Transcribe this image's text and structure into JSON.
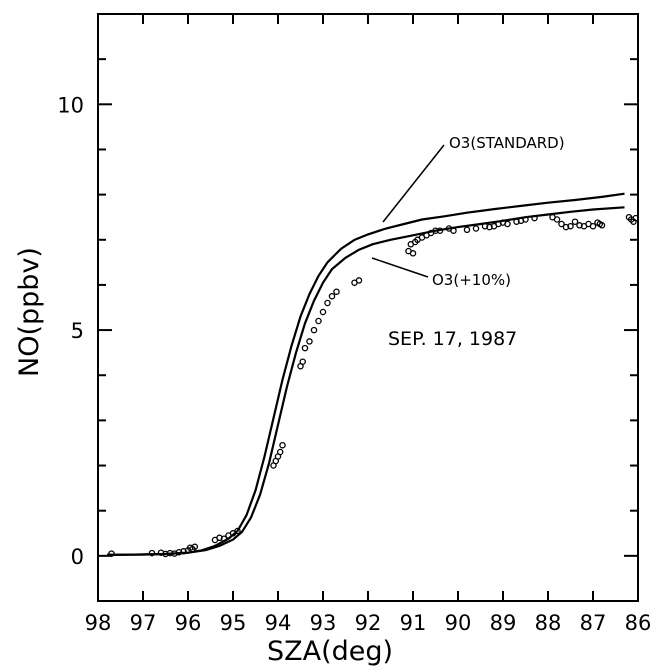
{
  "chart_data": {
    "type": "line",
    "title": "",
    "xlabel": "SZA(deg)",
    "ylabel": "NO(ppbv)",
    "x_reversed": true,
    "xlim": [
      98.0,
      86.0
    ],
    "ylim": [
      -1.0,
      12.0
    ],
    "x_tick_values": [
      98,
      97,
      96,
      95,
      94,
      93,
      92,
      91,
      90,
      89,
      88,
      87,
      86
    ],
    "x_tick_labels": [
      "98",
      "97",
      "96",
      "95",
      "94",
      "93",
      "92",
      "91",
      "90",
      "89",
      "88",
      "87",
      "86"
    ],
    "y_tick_values": [
      0,
      5,
      10
    ],
    "y_tick_labels": [
      "0",
      "5",
      "10"
    ],
    "y_minor_step": 1,
    "grid": false,
    "annotations": [
      {
        "text": "O3(STANDARD)",
        "points_to_series": "O3(STANDARD)"
      },
      {
        "text": "O3(+10%)",
        "points_to_series": "O3(+10%)"
      },
      {
        "text": "SEP. 17, 1987"
      }
    ],
    "series": [
      {
        "name": "O3(STANDARD)",
        "style": "line",
        "x": [
          97.8,
          97.0,
          96.5,
          96.0,
          95.7,
          95.4,
          95.1,
          94.9,
          94.7,
          94.5,
          94.3,
          94.1,
          93.9,
          93.7,
          93.5,
          93.3,
          93.1,
          92.9,
          92.6,
          92.3,
          92.0,
          91.6,
          91.2,
          90.8,
          90.3,
          89.8,
          89.2,
          88.6,
          88.0,
          87.4,
          86.8,
          86.3
        ],
        "y": [
          0.02,
          0.03,
          0.04,
          0.07,
          0.12,
          0.22,
          0.38,
          0.55,
          0.9,
          1.45,
          2.2,
          3.05,
          3.9,
          4.65,
          5.3,
          5.8,
          6.2,
          6.5,
          6.8,
          7.0,
          7.12,
          7.25,
          7.35,
          7.45,
          7.52,
          7.6,
          7.68,
          7.75,
          7.82,
          7.88,
          7.95,
          8.02
        ]
      },
      {
        "name": "O3(+10%)",
        "style": "line",
        "x": [
          97.8,
          97.0,
          96.5,
          96.0,
          95.6,
          95.3,
          95.0,
          94.8,
          94.6,
          94.4,
          94.2,
          94.0,
          93.8,
          93.6,
          93.4,
          93.2,
          93.0,
          92.8,
          92.5,
          92.2,
          91.9,
          91.5,
          91.0,
          90.5,
          90.0,
          89.5,
          89.0,
          88.5,
          88.0,
          87.5,
          87.0,
          86.3
        ],
        "y": [
          0.02,
          0.03,
          0.04,
          0.07,
          0.13,
          0.22,
          0.36,
          0.53,
          0.85,
          1.35,
          2.05,
          2.9,
          3.75,
          4.5,
          5.15,
          5.65,
          6.05,
          6.35,
          6.6,
          6.78,
          6.9,
          7.0,
          7.1,
          7.2,
          7.28,
          7.35,
          7.42,
          7.5,
          7.56,
          7.62,
          7.67,
          7.72
        ]
      },
      {
        "name": "",
        "style": "markers",
        "x": [
          97.7,
          96.8,
          96.6,
          96.5,
          96.4,
          96.3,
          96.2,
          96.1,
          96.0,
          95.95,
          95.9,
          95.85,
          95.4,
          95.3,
          95.2,
          95.1,
          95.0,
          94.9,
          94.1,
          94.05,
          94.0,
          93.95,
          93.9,
          93.5,
          93.45,
          93.4,
          93.3,
          93.2,
          93.1,
          93.0,
          92.9,
          92.8,
          92.7,
          92.3,
          92.2,
          91.1,
          91.05,
          91.0,
          90.95,
          90.9,
          90.8,
          90.7,
          90.6,
          90.5,
          90.4,
          90.2,
          90.1,
          89.8,
          89.6,
          89.4,
          89.3,
          89.2,
          89.1,
          89.0,
          88.9,
          88.7,
          88.6,
          88.5,
          88.3,
          87.9,
          87.8,
          87.7,
          87.6,
          87.5,
          87.4,
          87.3,
          87.2,
          87.1,
          87.0,
          86.9,
          86.85,
          86.8,
          86.2,
          86.15,
          86.1,
          86.05
        ],
        "y": [
          0.05,
          0.06,
          0.07,
          0.04,
          0.06,
          0.05,
          0.08,
          0.1,
          0.12,
          0.18,
          0.15,
          0.2,
          0.35,
          0.4,
          0.38,
          0.45,
          0.5,
          0.55,
          2.0,
          2.1,
          2.2,
          2.3,
          2.45,
          4.2,
          4.3,
          4.6,
          4.75,
          5.0,
          5.2,
          5.4,
          5.6,
          5.75,
          5.85,
          6.05,
          6.1,
          6.75,
          6.9,
          6.7,
          6.95,
          7.0,
          7.05,
          7.1,
          7.15,
          7.2,
          7.2,
          7.25,
          7.2,
          7.22,
          7.25,
          7.3,
          7.28,
          7.3,
          7.35,
          7.38,
          7.35,
          7.4,
          7.42,
          7.45,
          7.48,
          7.5,
          7.45,
          7.35,
          7.28,
          7.3,
          7.4,
          7.32,
          7.3,
          7.35,
          7.3,
          7.38,
          7.35,
          7.32,
          7.5,
          7.45,
          7.4,
          7.48
        ]
      }
    ]
  }
}
